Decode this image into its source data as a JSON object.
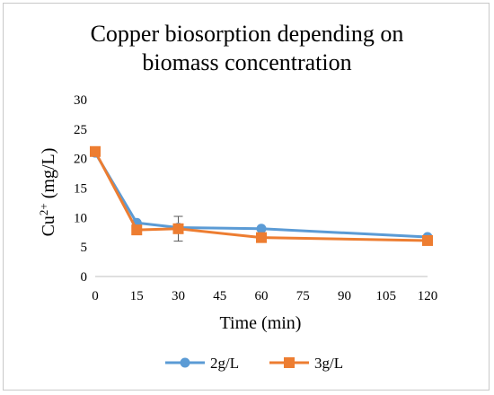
{
  "chart_data": {
    "type": "line",
    "title_line1": "Copper biosorption depending on",
    "title_line2": "biomass concentration",
    "xlabel": "Time (min)",
    "ylabel_base": "Cu",
    "ylabel_sup": "2+",
    "ylabel_rest": " (mg/L)",
    "x_ticks": [
      "0",
      "15",
      "30",
      "45",
      "60",
      "75",
      "90",
      "105",
      "120"
    ],
    "y_ticks": [
      "0",
      "5",
      "10",
      "15",
      "20",
      "25",
      "30"
    ],
    "xlim": [
      0,
      120
    ],
    "ylim": [
      0,
      30
    ],
    "grid": false,
    "legend_position": "bottom",
    "series": [
      {
        "name": "2g/L",
        "color": "#5b9bd5",
        "marker": "circle",
        "x": [
          0,
          15,
          30,
          60,
          120
        ],
        "y": [
          21.0,
          9.1,
          8.3,
          8.1,
          6.7
        ]
      },
      {
        "name": "3g/L",
        "color": "#ed7d31",
        "marker": "square",
        "x": [
          0,
          15,
          30,
          60,
          120
        ],
        "y": [
          21.2,
          7.9,
          8.1,
          6.6,
          6.1
        ],
        "error_bars": [
          {
            "x": 30,
            "low": 6.0,
            "high": 10.2
          }
        ]
      }
    ]
  }
}
